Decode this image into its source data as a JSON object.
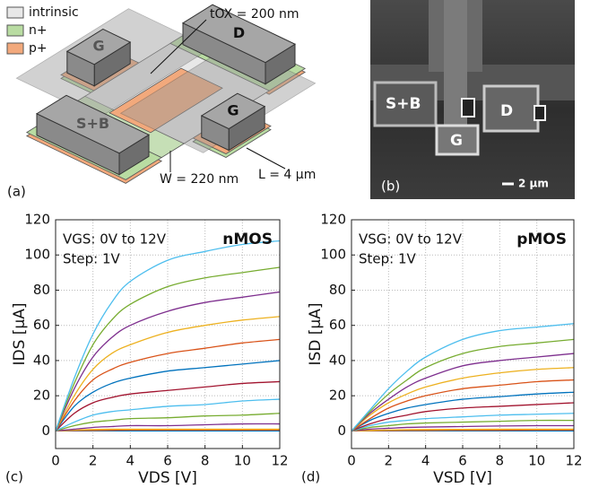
{
  "panel_a": {
    "label": "(a)",
    "legend": [
      {
        "name": "intrinsic",
        "color": "#e8e8e8"
      },
      {
        "name": "n+",
        "color": "#b9dca2"
      },
      {
        "name": "p+",
        "color": "#f2a97c"
      }
    ],
    "tox": "tOX = 200 nm",
    "width": "W = 220 nm",
    "length": "L = 4 µm",
    "contacts": [
      "G",
      "D",
      "S+B",
      "G"
    ]
  },
  "panel_b": {
    "label": "(b)",
    "contacts": [
      "S+B",
      "D",
      "G"
    ],
    "scale_bar": "2 µm"
  },
  "chart_data": [
    {
      "type": "line",
      "panel_label": "(c)",
      "device_label": "nMOS",
      "annotations": [
        "VGS: 0V to 12V",
        "Step: 1V"
      ],
      "xlabel": "VDS [V]",
      "ylabel": "IDS [µA]",
      "x": [
        0,
        1,
        2,
        3,
        4,
        6,
        8,
        10,
        12
      ],
      "xlim": [
        0,
        12
      ],
      "ylim": [
        -10,
        120
      ],
      "xticks": [
        0,
        2,
        4,
        6,
        8,
        10,
        12
      ],
      "yticks": [
        0,
        20,
        40,
        60,
        80,
        100,
        120
      ],
      "grid": true,
      "series": [
        {
          "color": "#0072BD",
          "values": [
            0,
            0,
            0,
            0,
            0,
            0,
            0,
            0,
            0
          ]
        },
        {
          "color": "#D95319",
          "values": [
            0,
            0.2,
            0.3,
            0.4,
            0.5,
            0.5,
            0.5,
            0.5,
            0.5
          ]
        },
        {
          "color": "#EDB120",
          "values": [
            0,
            0.5,
            0.8,
            1,
            1,
            1,
            1,
            1,
            1
          ]
        },
        {
          "color": "#7E2F8E",
          "values": [
            0,
            1,
            2,
            2.5,
            3,
            3,
            3.5,
            4,
            4
          ]
        },
        {
          "color": "#77AC30",
          "values": [
            0,
            3,
            5,
            6,
            7,
            7.5,
            8.5,
            9,
            10
          ]
        },
        {
          "color": "#4DBEEE",
          "values": [
            0,
            5,
            9,
            11,
            12,
            14,
            15,
            17,
            18
          ]
        },
        {
          "color": "#A2142F",
          "values": [
            0,
            10,
            16,
            19,
            21,
            23,
            25,
            27,
            28
          ]
        },
        {
          "color": "#0072BD",
          "values": [
            0,
            14,
            22,
            27,
            30,
            34,
            36,
            38,
            40
          ]
        },
        {
          "color": "#D95319",
          "values": [
            0,
            17,
            29,
            35,
            39,
            44,
            47,
            50,
            52
          ]
        },
        {
          "color": "#EDB120",
          "values": [
            0,
            20,
            35,
            44,
            49,
            56,
            60,
            63,
            65
          ]
        },
        {
          "color": "#7E2F8E",
          "values": [
            0,
            24,
            42,
            53,
            60,
            68,
            73,
            76,
            79
          ]
        },
        {
          "color": "#77AC30",
          "values": [
            0,
            27,
            49,
            63,
            72,
            82,
            87,
            90,
            93
          ]
        },
        {
          "color": "#4DBEEE",
          "values": [
            0,
            30,
            55,
            73,
            85,
            97,
            102,
            106,
            108
          ]
        }
      ]
    },
    {
      "type": "line",
      "panel_label": "(d)",
      "device_label": "pMOS",
      "annotations": [
        "VSG: 0V to 12V",
        "Step: 1V"
      ],
      "xlabel": "VSD [V]",
      "ylabel": "ISD [µA]",
      "x": [
        0,
        1,
        2,
        3,
        4,
        6,
        8,
        10,
        12
      ],
      "xlim": [
        0,
        12
      ],
      "ylim": [
        -10,
        120
      ],
      "xticks": [
        0,
        2,
        4,
        6,
        8,
        10,
        12
      ],
      "yticks": [
        0,
        20,
        40,
        60,
        80,
        100,
        120
      ],
      "grid": true,
      "series": [
        {
          "color": "#0072BD",
          "values": [
            0,
            0,
            0,
            0,
            0,
            0,
            0,
            0,
            0
          ]
        },
        {
          "color": "#D95319",
          "values": [
            0,
            0.1,
            0.2,
            0.3,
            0.3,
            0.4,
            0.4,
            0.5,
            0.5
          ]
        },
        {
          "color": "#EDB120",
          "values": [
            0,
            0.3,
            0.5,
            0.7,
            0.8,
            0.9,
            1,
            1,
            1
          ]
        },
        {
          "color": "#7E2F8E",
          "values": [
            0,
            1,
            1.5,
            2,
            2.2,
            2.5,
            2.8,
            3,
            3
          ]
        },
        {
          "color": "#77AC30",
          "values": [
            0,
            2,
            3,
            4,
            4.5,
            5,
            5.5,
            6,
            6
          ]
        },
        {
          "color": "#4DBEEE",
          "values": [
            0,
            3,
            5,
            6,
            7,
            8,
            9,
            9.5,
            10
          ]
        },
        {
          "color": "#A2142F",
          "values": [
            0,
            4,
            7,
            9,
            11,
            13,
            14,
            15,
            16
          ]
        },
        {
          "color": "#0072BD",
          "values": [
            0,
            6,
            10,
            13,
            15,
            18,
            19.5,
            21,
            22
          ]
        },
        {
          "color": "#D95319",
          "values": [
            0,
            7,
            13,
            17,
            20,
            24,
            26,
            28,
            29
          ]
        },
        {
          "color": "#EDB120",
          "values": [
            0,
            9,
            16,
            21,
            25,
            30,
            33,
            35,
            36
          ]
        },
        {
          "color": "#7E2F8E",
          "values": [
            0,
            10,
            18,
            25,
            30,
            37,
            40,
            42,
            44
          ]
        },
        {
          "color": "#77AC30",
          "values": [
            0,
            11,
            21,
            29,
            36,
            44,
            48,
            50,
            52
          ]
        },
        {
          "color": "#4DBEEE",
          "values": [
            0,
            12,
            24,
            34,
            42,
            52,
            57,
            59,
            61
          ]
        }
      ]
    }
  ]
}
